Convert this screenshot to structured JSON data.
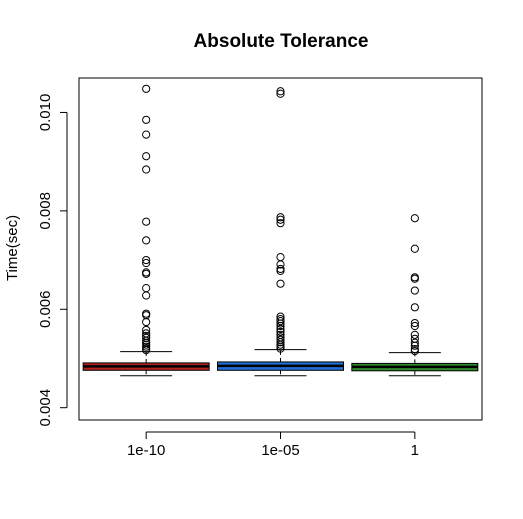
{
  "chart_data": {
    "type": "boxplot",
    "title": "Absolute Tolerance",
    "xlabel": "",
    "ylabel": "Time(sec)",
    "ylim": [
      0.00375,
      0.0107
    ],
    "yticks": [
      0.004,
      0.006,
      0.008,
      0.01
    ],
    "ytick_labels": [
      "0.004",
      "0.006",
      "0.008",
      "0.010"
    ],
    "categories": [
      "1e-10",
      "1e-05",
      "1"
    ],
    "grid": false,
    "legend": "none",
    "series": [
      {
        "category": "1e-10",
        "color": "#b22222",
        "median": 0.00484,
        "q1": 0.00476,
        "q3": 0.00491,
        "whisker_low": 0.00465,
        "whisker_high": 0.00514,
        "outliers": [
          0.01048,
          0.00985,
          0.00955,
          0.00911,
          0.00884,
          0.00778,
          0.0074,
          0.007,
          0.00694,
          0.00675,
          0.00672,
          0.00643,
          0.00628,
          0.00591,
          0.00588,
          0.00574,
          0.00558,
          0.00551,
          0.00546,
          0.00542,
          0.00536,
          0.00532,
          0.00528,
          0.00524,
          0.0052,
          0.00517
        ]
      },
      {
        "category": "1e-05",
        "color": "#1e6fd6",
        "median": 0.00485,
        "q1": 0.00476,
        "q3": 0.00493,
        "whisker_low": 0.00465,
        "whisker_high": 0.00518,
        "outliers": [
          0.01043,
          0.01038,
          0.00787,
          0.00782,
          0.00775,
          0.00706,
          0.00691,
          0.00682,
          0.00678,
          0.00652,
          0.00585,
          0.0058,
          0.00576,
          0.00571,
          0.00566,
          0.0056,
          0.00554,
          0.00548,
          0.00543,
          0.00538,
          0.00533,
          0.00528,
          0.00524,
          0.0052
        ]
      },
      {
        "category": "1",
        "color": "#2e8b2e",
        "median": 0.00483,
        "q1": 0.00475,
        "q3": 0.0049,
        "whisker_low": 0.00465,
        "whisker_high": 0.00512,
        "outliers": [
          0.00785,
          0.00723,
          0.00665,
          0.00662,
          0.00638,
          0.00604,
          0.00572,
          0.00566,
          0.00548,
          0.0054,
          0.00532,
          0.00526,
          0.00519,
          0.00515
        ]
      }
    ]
  }
}
